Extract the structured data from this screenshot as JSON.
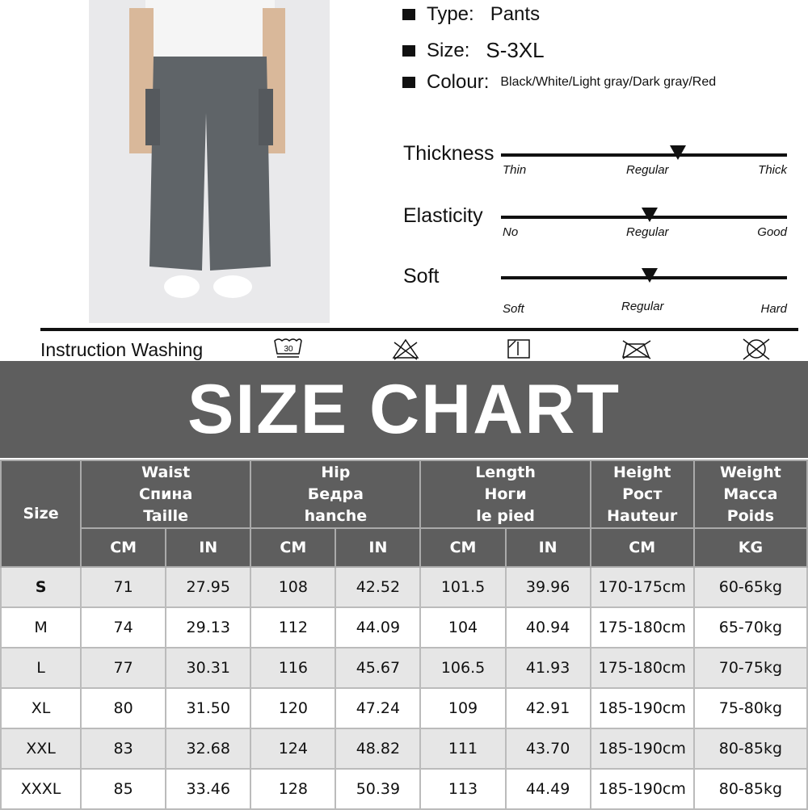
{
  "specs": [
    {
      "label": "Type:",
      "value": "Pants"
    },
    {
      "label": "Size:",
      "value": "S-3XL"
    },
    {
      "label": "Colour:",
      "value": "Black/White/Light gray/Dark gray/Red"
    }
  ],
  "sliders": [
    {
      "label": "Thickness",
      "ticks": [
        "Thin",
        "Regular",
        "Thick"
      ],
      "level": 0.62
    },
    {
      "label": "Elasticity",
      "ticks": [
        "No",
        "Regular",
        "Good"
      ],
      "level": 0.52
    },
    {
      "label": "Soft",
      "ticks": [
        "Soft",
        "Regular",
        "Hard"
      ],
      "level": 0.52
    }
  ],
  "washing": {
    "label": "Instruction Washing",
    "icons": [
      "wash-30-icon",
      "do-not-bleach-icon",
      "dry-flat-icon",
      "do-not-iron-icon",
      "do-not-dry-clean-icon"
    ],
    "temp": "30"
  },
  "banner": "SIZE CHART",
  "table": {
    "size_header": "Size",
    "groups": [
      {
        "lines": [
          "Waist",
          "Спина",
          "Taille"
        ],
        "units": [
          "CM",
          "IN"
        ]
      },
      {
        "lines": [
          "Hip",
          "Бедра",
          "hanche"
        ],
        "units": [
          "CM",
          "IN"
        ]
      },
      {
        "lines": [
          "Length",
          "Ноги",
          "le pied"
        ],
        "units": [
          "CM",
          "IN"
        ]
      },
      {
        "lines": [
          "Height",
          "Рост",
          "Hauteur"
        ],
        "units": [
          "CM"
        ]
      },
      {
        "lines": [
          "Weight",
          "Масса",
          "Poids"
        ],
        "units": [
          "KG"
        ]
      }
    ],
    "rows": [
      [
        "S",
        "71",
        "27.95",
        "108",
        "42.52",
        "101.5",
        "39.96",
        "170-175cm",
        "60-65kg"
      ],
      [
        "M",
        "74",
        "29.13",
        "112",
        "44.09",
        "104",
        "40.94",
        "175-180cm",
        "65-70kg"
      ],
      [
        "L",
        "77",
        "30.31",
        "116",
        "45.67",
        "106.5",
        "41.93",
        "175-180cm",
        "70-75kg"
      ],
      [
        "XL",
        "80",
        "31.50",
        "120",
        "47.24",
        "109",
        "42.91",
        "185-190cm",
        "75-80kg"
      ],
      [
        "XXL",
        "83",
        "32.68",
        "124",
        "48.82",
        "111",
        "43.70",
        "185-190cm",
        "80-85kg"
      ],
      [
        "XXXL",
        "85",
        "33.46",
        "128",
        "50.39",
        "113",
        "44.49",
        "185-190cm",
        "80-85kg"
      ]
    ]
  }
}
